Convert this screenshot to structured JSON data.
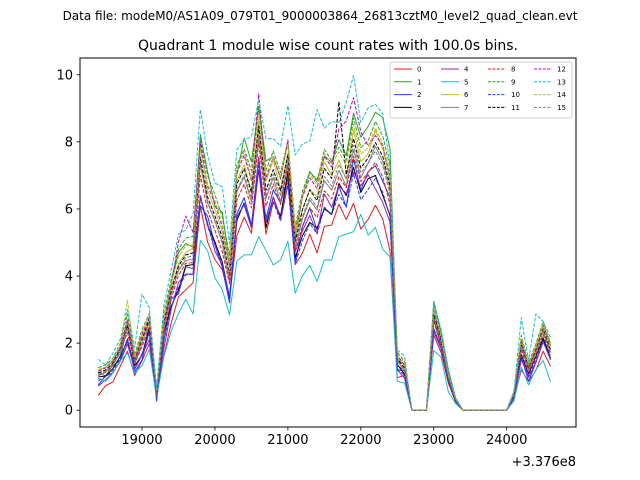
{
  "figure": {
    "suptitle": "Data file: modeM0/AS1A09_079T01_9000003864_26813cztM0_level2_quad_clean.evt"
  },
  "chart_data": {
    "type": "line",
    "title": "Quadrant 1 module wise count rates with 100.0s bins.",
    "xlabel": "",
    "ylabel": "",
    "x_offset_label": "+3.376e8",
    "xlim": [
      18150,
      24950
    ],
    "ylim": [
      -0.5,
      10.5
    ],
    "x_ticks": [
      19000,
      20000,
      21000,
      22000,
      23000,
      24000
    ],
    "x_tick_labels": [
      "19000",
      "20000",
      "21000",
      "22000",
      "23000",
      "24000"
    ],
    "y_ticks": [
      0,
      2,
      4,
      6,
      8,
      10
    ],
    "y_tick_labels": [
      "0",
      "2",
      "4",
      "6",
      "8",
      "10"
    ],
    "x": [
      18400,
      18500,
      18600,
      18700,
      18800,
      18900,
      19000,
      19100,
      19200,
      19300,
      19400,
      19500,
      19600,
      19700,
      19800,
      19900,
      20000,
      20100,
      20200,
      20300,
      20400,
      20500,
      20600,
      20700,
      20800,
      20900,
      21000,
      21100,
      21200,
      21300,
      21400,
      21500,
      21600,
      21700,
      21800,
      21900,
      22000,
      22100,
      22200,
      22300,
      22400,
      22500,
      22600,
      22700,
      22800,
      22900,
      23000,
      23100,
      23200,
      23300,
      23400,
      23500,
      23600,
      23700,
      23800,
      23900,
      24000,
      24100,
      24200,
      24300,
      24400,
      24500,
      24600
    ],
    "legend": {
      "location": "upper-right",
      "columns": 4
    },
    "series": [
      {
        "name": "0",
        "color": "#e31a1c",
        "dash": "solid",
        "values": [
          0.44,
          0.73,
          0.84,
          1.3,
          1.76,
          1.04,
          1.47,
          1.99,
          0.54,
          1.62,
          2.6,
          3.38,
          3.59,
          3.8,
          6.08,
          5.01,
          4.49,
          4.19,
          3.33,
          5.2,
          5.76,
          5.27,
          7.17,
          5.25,
          6.21,
          5.81,
          6.95,
          4.34,
          4.68,
          5.25,
          4.69,
          5.48,
          5.52,
          6.14,
          5.68,
          6.17,
          5.4,
          5.69,
          6.11,
          5.7,
          4.75,
          0.97,
          1.04,
          0.0,
          0.0,
          0.0,
          2.24,
          1.72,
          0.81,
          0.24,
          0.0,
          0.0,
          0.0,
          0.0,
          0.0,
          0.0,
          0.0,
          0.33,
          1.2,
          0.86,
          1.18,
          1.76,
          1.31
        ]
      },
      {
        "name": "1",
        "color": "#2ca02c",
        "dash": "solid",
        "values": [
          1.13,
          1.02,
          1.34,
          1.49,
          2.57,
          1.47,
          2.17,
          2.46,
          0.48,
          2.62,
          3.79,
          4.7,
          4.97,
          4.87,
          8.22,
          7.1,
          6.07,
          5.91,
          4.35,
          7.02,
          8.12,
          7.4,
          9.06,
          7.43,
          7.56,
          6.93,
          7.97,
          5.11,
          6.38,
          7.1,
          6.87,
          7.58,
          7.39,
          8.07,
          7.59,
          8.86,
          8.14,
          8.46,
          8.88,
          8.72,
          7.8,
          1.52,
          1.34,
          0.0,
          0.0,
          0.0,
          3.25,
          2.33,
          1.22,
          0.35,
          0.0,
          0.0,
          0.0,
          0.0,
          0.0,
          0.0,
          0.0,
          0.43,
          2.1,
          1.26,
          1.84,
          2.51,
          1.99
        ]
      },
      {
        "name": "2",
        "color": "#1f3bff",
        "dash": "solid",
        "values": [
          0.75,
          1.02,
          1.11,
          1.49,
          2.13,
          1.14,
          1.5,
          2.37,
          0.27,
          2.08,
          3.32,
          3.47,
          4.28,
          4.22,
          6.1,
          5.78,
          4.92,
          4.26,
          3.2,
          5.85,
          6.34,
          5.53,
          7.17,
          5.72,
          6.57,
          6.18,
          6.95,
          4.39,
          5.46,
          6.03,
          5.37,
          6.0,
          5.84,
          6.68,
          6.06,
          7.49,
          6.56,
          7.11,
          7.29,
          6.83,
          6.34,
          1.18,
          1.2,
          0.0,
          0.0,
          0.0,
          2.34,
          1.84,
          1.0,
          0.24,
          0.0,
          0.0,
          0.0,
          0.0,
          0.0,
          0.0,
          0.0,
          0.35,
          1.59,
          0.86,
          1.42,
          2.11,
          1.55
        ]
      },
      {
        "name": "3",
        "color": "#000000",
        "dash": "solid",
        "values": [
          0.99,
          1.02,
          1.24,
          1.6,
          2.06,
          1.32,
          1.64,
          2.47,
          0.42,
          2.33,
          3.1,
          3.58,
          4.31,
          4.34,
          6.35,
          5.51,
          5.02,
          4.42,
          3.36,
          5.65,
          6.18,
          5.44,
          7.51,
          5.44,
          6.36,
          5.74,
          7.13,
          4.54,
          5.2,
          5.6,
          5.43,
          6.02,
          5.84,
          6.76,
          6.4,
          7.24,
          6.49,
          6.9,
          7.0,
          6.41,
          5.81,
          1.36,
          1.07,
          0.0,
          0.0,
          0.0,
          2.72,
          1.94,
          0.9,
          0.26,
          0.0,
          0.0,
          0.0,
          0.0,
          0.0,
          0.0,
          0.0,
          0.47,
          1.66,
          1.08,
          1.6,
          2.15,
          1.56
        ]
      },
      {
        "name": "4",
        "color": "#9b1fbf",
        "dash": "solid",
        "values": [
          0.72,
          0.91,
          1.11,
          1.45,
          1.97,
          1.22,
          1.64,
          2.1,
          0.42,
          1.84,
          3.01,
          3.81,
          4.06,
          4.06,
          6.36,
          5.57,
          4.74,
          4.33,
          3.39,
          5.77,
          6.12,
          5.44,
          7.55,
          5.61,
          6.35,
          5.69,
          6.71,
          4.71,
          5.35,
          5.81,
          5.26,
          6.45,
          6.05,
          6.69,
          6.46,
          7.1,
          6.69,
          7.02,
          6.6,
          6.2,
          5.6,
          1.21,
          0.95,
          0.0,
          0.0,
          0.0,
          2.43,
          1.89,
          0.97,
          0.24,
          0.0,
          0.0,
          0.0,
          0.0,
          0.0,
          0.0,
          0.0,
          0.33,
          1.51,
          0.98,
          1.42,
          2.04,
          1.53
        ]
      },
      {
        "name": "5",
        "color": "#17becf",
        "dash": "solid",
        "values": [
          0.95,
          0.86,
          1.1,
          1.47,
          1.7,
          1.11,
          1.33,
          1.81,
          0.37,
          1.59,
          2.36,
          2.88,
          3.31,
          2.87,
          5.06,
          4.75,
          3.94,
          3.6,
          2.84,
          4.45,
          4.63,
          4.63,
          5.17,
          4.76,
          4.33,
          4.48,
          5.04,
          3.49,
          4.01,
          4.32,
          3.84,
          4.48,
          4.48,
          5.18,
          5.25,
          5.32,
          5.84,
          5.22,
          5.45,
          4.8,
          4.57,
          0.86,
          0.81,
          0.0,
          0.0,
          0.0,
          1.78,
          1.58,
          0.55,
          0.2,
          0.0,
          0.0,
          0.0,
          0.0,
          0.0,
          0.0,
          0.0,
          0.28,
          1.28,
          0.76,
          1.21,
          1.48,
          0.85
        ]
      },
      {
        "name": "6",
        "color": "#bcbd22",
        "dash": "solid",
        "values": [
          1.17,
          1.29,
          1.45,
          1.88,
          2.66,
          1.55,
          2.17,
          2.7,
          0.58,
          2.6,
          3.63,
          4.37,
          4.7,
          4.84,
          7.85,
          6.55,
          5.98,
          5.32,
          4.26,
          6.84,
          7.32,
          6.5,
          8.65,
          6.84,
          7.46,
          6.59,
          7.66,
          5.24,
          5.98,
          6.58,
          6.36,
          7.41,
          6.99,
          7.46,
          6.87,
          8.36,
          7.41,
          7.65,
          8.34,
          7.79,
          6.86,
          1.59,
          1.33,
          0.0,
          0.0,
          0.0,
          3.0,
          2.11,
          1.0,
          0.33,
          0.0,
          0.0,
          0.0,
          0.0,
          0.0,
          0.0,
          0.0,
          0.55,
          2.06,
          1.31,
          1.84,
          2.51,
          1.9
        ]
      },
      {
        "name": "7",
        "color": "#7f7f7f",
        "dash": "solid",
        "values": [
          1.03,
          1.13,
          1.39,
          1.68,
          2.44,
          1.38,
          1.99,
          2.63,
          0.48,
          2.47,
          3.45,
          4.17,
          4.46,
          4.51,
          7.38,
          6.17,
          5.66,
          4.98,
          3.84,
          6.51,
          6.95,
          6.22,
          8.14,
          6.31,
          6.93,
          6.21,
          7.38,
          4.83,
          5.71,
          6.27,
          5.97,
          6.84,
          6.56,
          7.15,
          6.68,
          7.76,
          6.93,
          7.36,
          7.87,
          7.42,
          6.6,
          1.46,
          1.19,
          0.0,
          0.0,
          0.0,
          2.77,
          2.01,
          0.99,
          0.29,
          0.0,
          0.0,
          0.0,
          0.0,
          0.0,
          0.0,
          0.0,
          0.49,
          1.89,
          1.2,
          1.72,
          2.34,
          1.72
        ]
      },
      {
        "name": "8",
        "color": "#e31a1c",
        "dash": "dashed",
        "values": [
          1.04,
          1.13,
          1.32,
          1.76,
          2.31,
          1.38,
          1.9,
          2.49,
          0.45,
          2.33,
          3.32,
          4.02,
          4.38,
          4.4,
          7.0,
          5.95,
          5.36,
          4.73,
          3.77,
          6.26,
          6.74,
          6.03,
          7.96,
          6.08,
          6.75,
          6.13,
          7.28,
          4.73,
          5.5,
          6.04,
          5.74,
          6.54,
          6.3,
          6.96,
          6.63,
          7.57,
          6.82,
          7.09,
          7.39,
          6.96,
          6.13,
          1.37,
          1.15,
          0.0,
          0.0,
          0.0,
          2.63,
          1.96,
          0.96,
          0.28,
          0.0,
          0.0,
          0.0,
          0.0,
          0.0,
          0.0,
          0.0,
          0.45,
          1.8,
          1.13,
          1.65,
          2.25,
          1.65
        ]
      },
      {
        "name": "9",
        "color": "#2ca02c",
        "dash": "dashed",
        "values": [
          1.27,
          1.35,
          1.54,
          1.98,
          2.87,
          1.65,
          2.41,
          2.88,
          0.62,
          2.92,
          3.88,
          4.8,
          5.13,
          5.18,
          8.09,
          6.99,
          6.43,
          5.76,
          4.62,
          7.3,
          7.79,
          7.14,
          8.94,
          7.16,
          7.73,
          7.08,
          8.01,
          5.48,
          6.53,
          7.12,
          6.8,
          7.78,
          7.44,
          7.84,
          7.46,
          8.71,
          7.83,
          8.02,
          8.61,
          8.18,
          7.25,
          1.74,
          1.45,
          0.0,
          0.0,
          0.0,
          3.12,
          2.25,
          1.09,
          0.36,
          0.0,
          0.0,
          0.0,
          0.0,
          0.0,
          0.0,
          0.0,
          0.57,
          2.23,
          1.41,
          1.98,
          2.65,
          2.0
        ]
      },
      {
        "name": "10",
        "color": "#1f3bff",
        "dash": "dashed",
        "values": [
          0.88,
          1.0,
          1.18,
          1.55,
          2.09,
          1.24,
          1.69,
          2.27,
          0.39,
          2.07,
          3.05,
          3.67,
          4.04,
          4.05,
          6.41,
          5.47,
          4.92,
          4.34,
          3.35,
          5.74,
          6.18,
          5.47,
          7.34,
          5.6,
          6.22,
          5.64,
          6.78,
          4.37,
          5.05,
          5.57,
          5.26,
          6.05,
          5.83,
          6.44,
          6.05,
          7.05,
          6.28,
          6.58,
          6.91,
          6.5,
          5.77,
          1.24,
          1.04,
          0.0,
          0.0,
          0.0,
          2.44,
          1.81,
          0.88,
          0.25,
          0.0,
          0.0,
          0.0,
          0.0,
          0.0,
          0.0,
          0.0,
          0.4,
          1.62,
          1.02,
          1.51,
          2.06,
          1.5
        ]
      },
      {
        "name": "11",
        "color": "#000000",
        "dash": "dashed",
        "values": [
          1.11,
          1.2,
          1.4,
          1.81,
          2.52,
          1.45,
          2.1,
          2.71,
          0.52,
          2.55,
          3.55,
          4.3,
          4.63,
          4.69,
          7.54,
          6.35,
          5.79,
          5.15,
          4.03,
          6.74,
          7.2,
          6.5,
          8.47,
          6.56,
          7.17,
          6.54,
          7.61,
          5.01,
          5.98,
          6.57,
          6.25,
          7.21,
          6.91,
          9.2,
          7.02,
          8.1,
          7.22,
          7.52,
          7.98,
          7.57,
          6.7,
          1.52,
          1.26,
          0.0,
          0.0,
          0.0,
          2.86,
          2.08,
          1.01,
          0.31,
          0.0,
          0.0,
          0.0,
          0.0,
          0.0,
          0.0,
          0.0,
          0.5,
          1.97,
          1.25,
          1.79,
          2.42,
          1.81
        ]
      },
      {
        "name": "12",
        "color": "#c400c4",
        "dash": "dashed",
        "values": [
          1.16,
          1.26,
          1.47,
          1.86,
          2.69,
          1.52,
          2.26,
          2.77,
          0.56,
          2.69,
          3.71,
          5.02,
          5.79,
          5.3,
          7.98,
          6.69,
          6.16,
          5.46,
          4.32,
          7.07,
          7.6,
          6.85,
          9.43,
          6.93,
          7.56,
          6.89,
          8.06,
          5.31,
          6.35,
          6.93,
          6.61,
          7.57,
          7.25,
          8.39,
          8.62,
          9.32,
          8.3,
          7.88,
          8.19,
          7.9,
          6.98,
          1.63,
          1.34,
          0.0,
          0.0,
          0.0,
          2.99,
          2.18,
          1.05,
          0.33,
          0.0,
          0.0,
          0.0,
          0.0,
          0.0,
          0.0,
          0.0,
          0.54,
          2.1,
          1.33,
          1.92,
          2.56,
          1.93
        ]
      },
      {
        "name": "13",
        "color": "#17becf",
        "dash": "dashed",
        "values": [
          1.52,
          1.34,
          1.7,
          2.11,
          3.0,
          1.87,
          3.46,
          3.05,
          0.66,
          3.12,
          4.17,
          5.25,
          5.37,
          5.86,
          8.97,
          7.61,
          6.77,
          6.66,
          4.97,
          7.76,
          8.07,
          8.15,
          9.26,
          8.09,
          8.1,
          7.87,
          9.08,
          7.61,
          7.94,
          8.02,
          8.96,
          8.41,
          8.6,
          8.58,
          9.17,
          9.98,
          8.58,
          9.01,
          9.12,
          8.84,
          7.31,
          1.8,
          1.61,
          0.0,
          0.0,
          0.0,
          3.2,
          2.42,
          1.2,
          0.38,
          0.0,
          0.0,
          0.0,
          0.0,
          0.0,
          0.0,
          0.0,
          0.57,
          2.76,
          1.48,
          2.87,
          2.64,
          2.17
        ]
      },
      {
        "name": "14",
        "color": "#bcbd22",
        "dash": "dashed",
        "values": [
          1.21,
          1.29,
          1.5,
          1.92,
          3.28,
          1.57,
          2.32,
          2.83,
          0.58,
          2.78,
          3.78,
          4.57,
          4.91,
          4.94,
          7.75,
          6.73,
          6.25,
          5.54,
          4.4,
          7.17,
          7.72,
          6.91,
          8.88,
          7.0,
          7.58,
          6.96,
          7.95,
          5.34,
          6.42,
          7.04,
          6.71,
          7.66,
          7.33,
          7.7,
          7.29,
          8.52,
          7.64,
          7.82,
          8.42,
          7.95,
          7.05,
          1.67,
          1.39,
          0.0,
          0.0,
          0.0,
          3.05,
          2.2,
          1.06,
          0.34,
          0.0,
          0.0,
          0.0,
          0.0,
          0.0,
          0.0,
          0.0,
          0.55,
          2.16,
          1.36,
          1.92,
          2.59,
          1.95
        ]
      },
      {
        "name": "15",
        "color": "#7f7f7f",
        "dash": "dashed",
        "values": [
          1.08,
          1.17,
          1.36,
          1.77,
          2.47,
          1.42,
          2.05,
          2.62,
          0.5,
          2.48,
          3.47,
          4.2,
          4.55,
          4.6,
          7.31,
          6.22,
          5.62,
          5.02,
          3.95,
          6.55,
          7.02,
          6.33,
          8.27,
          6.39,
          7.04,
          6.4,
          7.51,
          4.91,
          5.79,
          6.35,
          6.05,
          6.97,
          6.68,
          7.33,
          6.9,
          7.9,
          7.07,
          7.36,
          7.73,
          7.29,
          6.44,
          1.47,
          1.22,
          0.0,
          0.0,
          0.0,
          2.79,
          2.03,
          0.98,
          0.3,
          0.0,
          0.0,
          0.0,
          0.0,
          0.0,
          0.0,
          0.0,
          0.47,
          1.93,
          1.22,
          1.74,
          2.38,
          1.75
        ]
      }
    ]
  }
}
